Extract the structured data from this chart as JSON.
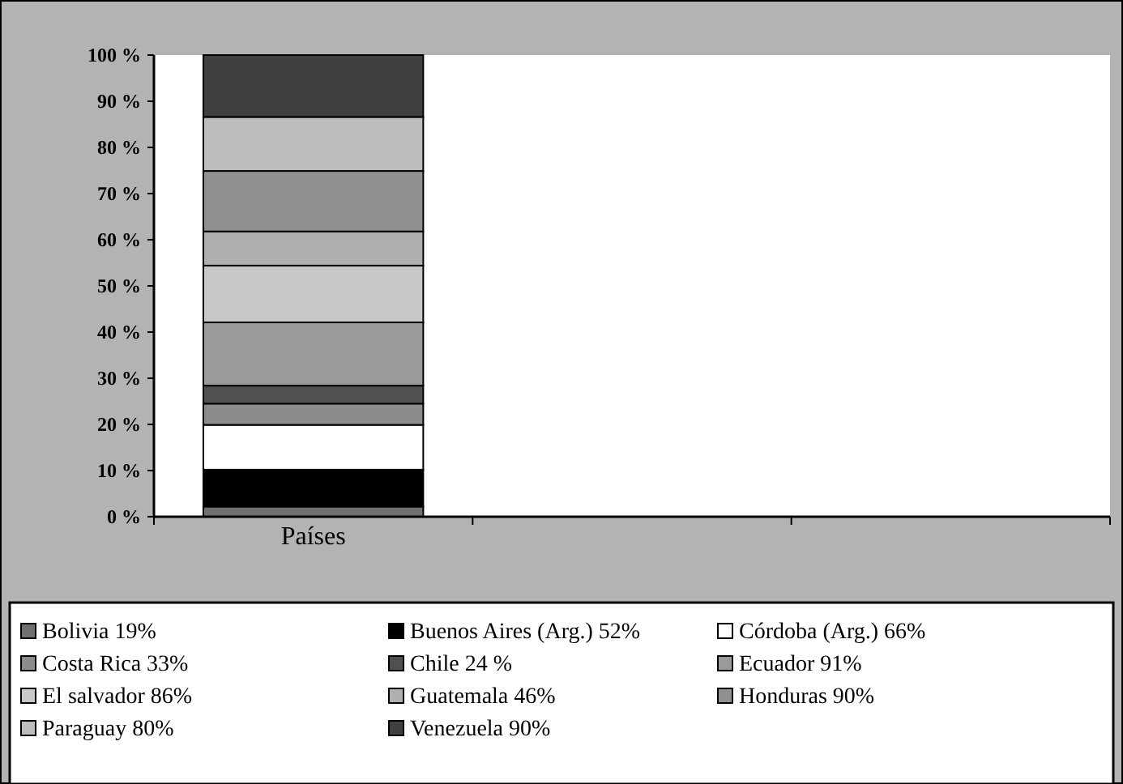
{
  "chart_data": {
    "type": "bar",
    "stacked": true,
    "categories": [
      "Países",
      null,
      null
    ],
    "series": [
      {
        "name": "Bolivia  19%",
        "color": "#707070",
        "values": [
          2.2,
          null,
          null
        ]
      },
      {
        "name": "Buenos Aires (Arg.)  52%",
        "color": "#000000",
        "values": [
          8,
          null,
          null
        ]
      },
      {
        "name": "Córdoba (Arg.)   66%",
        "color": "#ffffff",
        "values": [
          9.7,
          null,
          null
        ]
      },
      {
        "name": "Costa Rica  33%",
        "color": "#8c8c8c",
        "values": [
          4.6,
          null,
          null
        ]
      },
      {
        "name": "Chile  24 %",
        "color": "#505050",
        "values": [
          3.9,
          null,
          null
        ]
      },
      {
        "name": "Ecuador  91%",
        "color": "#9a9a9a",
        "values": [
          13.7,
          null,
          null
        ]
      },
      {
        "name": "El salvador  86%",
        "color": "#c8c8c8",
        "values": [
          12.3,
          null,
          null
        ]
      },
      {
        "name": "Guatemala  46%",
        "color": "#b0b0b0",
        "values": [
          7.4,
          null,
          null
        ]
      },
      {
        "name": "Honduras   90%",
        "color": "#909090",
        "values": [
          13.1,
          null,
          null
        ]
      },
      {
        "name": "Paraguay   80%",
        "color": "#bdbdbd",
        "values": [
          11.7,
          null,
          null
        ]
      },
      {
        "name": "Venezuela  90%",
        "color": "#404040",
        "values": [
          13.4,
          null,
          null
        ]
      }
    ],
    "ylim": [
      0,
      100
    ],
    "yticks": [
      {
        "value": 0,
        "label": "0 %"
      },
      {
        "value": 10,
        "label": "10 %"
      },
      {
        "value": 20,
        "label": "20 %"
      },
      {
        "value": 30,
        "label": "30 %"
      },
      {
        "value": 40,
        "label": "40 %"
      },
      {
        "value": 50,
        "label": "50 %"
      },
      {
        "value": 60,
        "label": "60 %"
      },
      {
        "value": 70,
        "label": "70 %"
      },
      {
        "value": 80,
        "label": "80 %"
      },
      {
        "value": 90,
        "label": "90 %"
      },
      {
        "value": 100,
        "label": "100 %"
      }
    ],
    "legend": "bottom"
  }
}
